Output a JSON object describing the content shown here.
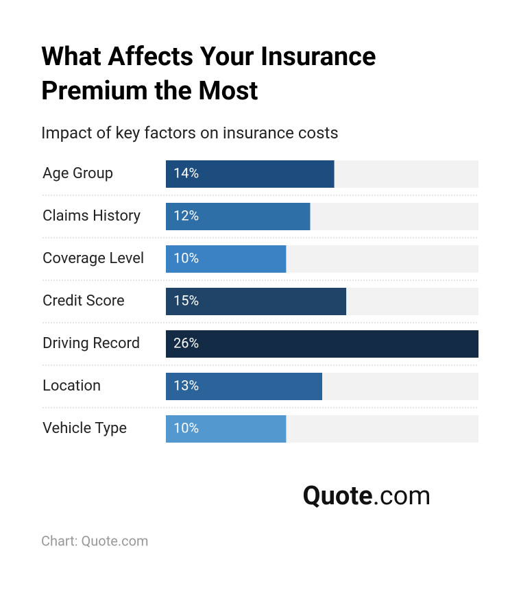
{
  "chart_data": {
    "type": "bar",
    "orientation": "horizontal",
    "title": "What Affects Your Insurance Premium the Most",
    "subtitle": "Impact of key factors on insurance costs",
    "categories": [
      "Age Group",
      "Claims History",
      "Coverage Level",
      "Credit Score",
      "Driving Record",
      "Location",
      "Vehicle Type"
    ],
    "values": [
      14,
      12,
      10,
      15,
      26,
      13,
      10
    ],
    "value_labels": [
      "14%",
      "12%",
      "10%",
      "15%",
      "26%",
      "13%",
      "10%"
    ],
    "colors": [
      "#1c4d7e",
      "#2e6fa8",
      "#3a82c4",
      "#1f4468",
      "#142b45",
      "#2b649a",
      "#5498d0"
    ],
    "xlim": [
      0,
      26
    ],
    "logo": {
      "bold": "Quote",
      "regular": ".com"
    },
    "source": "Chart: Quote.com"
  }
}
